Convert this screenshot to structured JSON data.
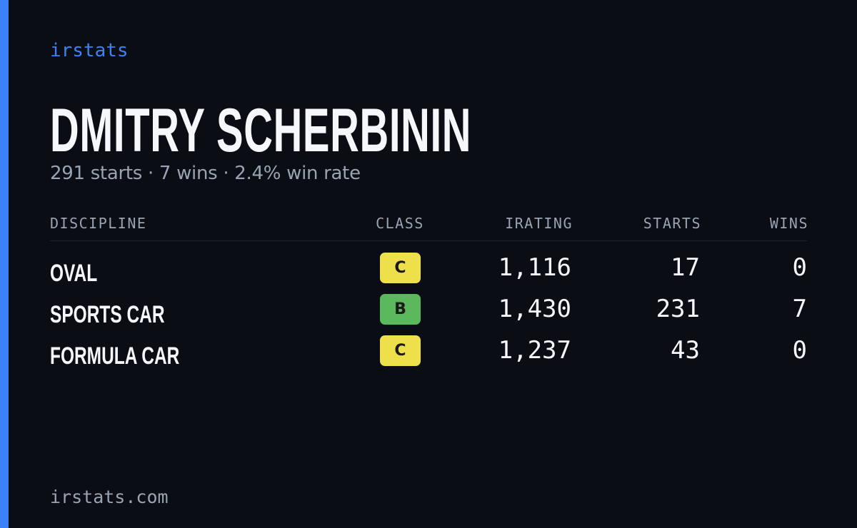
{
  "brand": "irstats",
  "profile": {
    "name": "DMITRY SCHERBININ",
    "summary": "291 starts · 7 wins · 2.4% win rate"
  },
  "table": {
    "headers": [
      "DISCIPLINE",
      "CLASS",
      "IRATING",
      "STARTS",
      "WINS"
    ],
    "rows": [
      {
        "discipline": "OVAL",
        "class": "C",
        "class_color": "#ede04a",
        "irating": "1,116",
        "starts": "17",
        "wins": "0"
      },
      {
        "discipline": "SPORTS CAR",
        "class": "B",
        "class_color": "#5cb85c",
        "irating": "1,430",
        "starts": "231",
        "wins": "7"
      },
      {
        "discipline": "FORMULA CAR",
        "class": "C",
        "class_color": "#ede04a",
        "irating": "1,237",
        "starts": "43",
        "wins": "0"
      }
    ]
  },
  "footer": "irstats.com"
}
